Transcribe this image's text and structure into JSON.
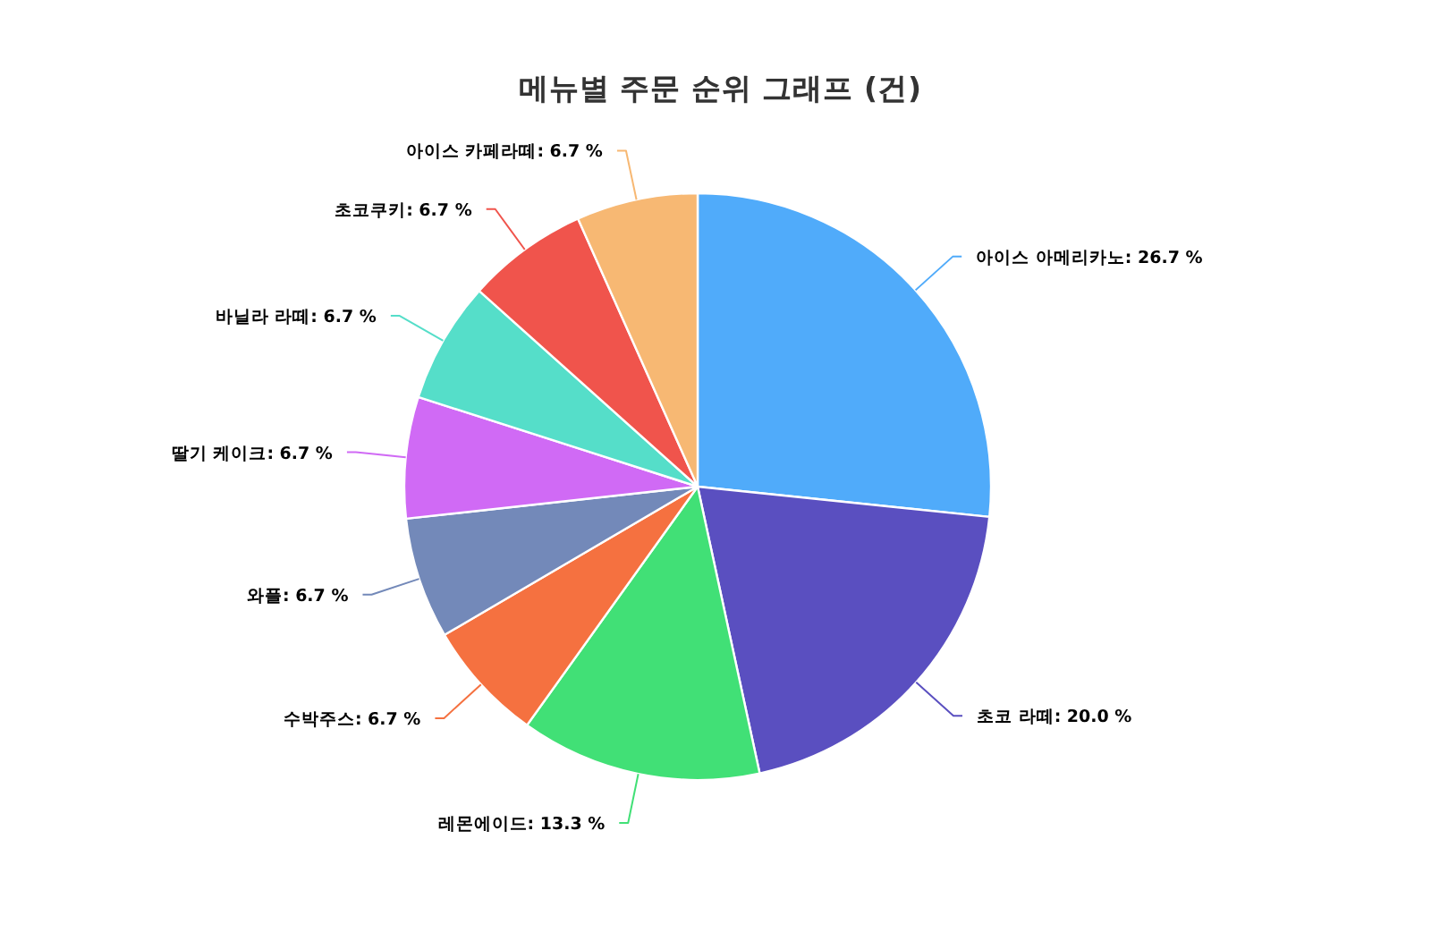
{
  "chart_data": {
    "type": "pie",
    "title": "메뉴별 주문 순위 그래프 (건)",
    "categories": [
      "아이스 아메리카노",
      "초코 라떼",
      "레몬에이드",
      "수박주스",
      "와플",
      "딸기 케이크",
      "바닐라 라떼",
      "초코쿠키",
      "아이스 카페라떼"
    ],
    "values": [
      26.7,
      20.0,
      13.3,
      6.7,
      6.7,
      6.7,
      6.7,
      6.7,
      6.7
    ],
    "value_labels": [
      ": 26.7 %",
      ": 20.0 %",
      ": 13.3 %",
      ": 6.7 %",
      ": 6.7 %",
      ": 6.7 %",
      ": 6.7 %",
      ": 6.7 %",
      ": 6.7 %"
    ],
    "colors": [
      "#50abfa",
      "#5a4fc0",
      "#41e076",
      "#f57140",
      "#7389b9",
      "#d06af5",
      "#55dec9",
      "#f0544c",
      "#f7b873"
    ]
  }
}
